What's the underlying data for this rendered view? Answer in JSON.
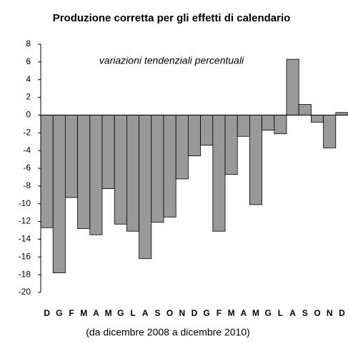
{
  "chart_data": {
    "type": "bar",
    "title": "Produzione corretta per gli effetti di calendario",
    "subtitle": "variazioni tendenziali percentuali",
    "xlabel": "(da dicembre 2008 a dicembre 2010)",
    "categories": [
      "D",
      "G",
      "F",
      "M",
      "A",
      "M",
      "G",
      "L",
      "A",
      "S",
      "O",
      "N",
      "D",
      "G",
      "F",
      "M",
      "A",
      "M",
      "G",
      "L",
      "A",
      "S",
      "O",
      "N",
      "D"
    ],
    "values": [
      -12.7,
      -17.8,
      -9.3,
      -12.8,
      -13.5,
      -8.3,
      -12.3,
      -13.1,
      -16.2,
      -12.1,
      -11.5,
      -7.2,
      -4.6,
      -3.4,
      -13.1,
      -6.7,
      -2.4,
      -10.1,
      -1.7,
      -2.1,
      6.3,
      1.2,
      -0.8,
      -3.7,
      0.3
    ],
    "color": "#999999",
    "ylim": [
      -20,
      8
    ],
    "yticks": [
      -20,
      -18,
      -16,
      -14,
      -12,
      -10,
      -8,
      -6,
      -4,
      -2,
      0,
      2,
      4,
      6,
      8
    ]
  }
}
